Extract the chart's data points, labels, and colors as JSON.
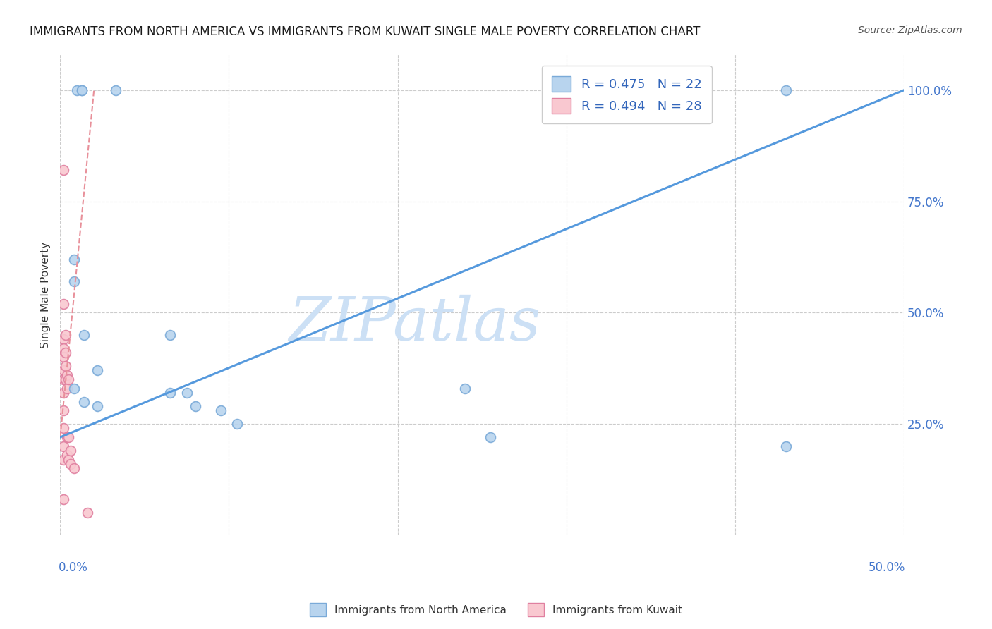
{
  "title": "IMMIGRANTS FROM NORTH AMERICA VS IMMIGRANTS FROM KUWAIT SINGLE MALE POVERTY CORRELATION CHART",
  "source": "Source: ZipAtlas.com",
  "ylabel": "Single Male Poverty",
  "right_ytick_labels": [
    "25.0%",
    "50.0%",
    "75.0%",
    "100.0%"
  ],
  "right_ytick_values": [
    0.25,
    0.5,
    0.75,
    1.0
  ],
  "watermark": "ZIPatlas",
  "watermark_color": "#cce0f5",
  "blue_scatter_x": [
    0.01,
    0.013,
    0.013,
    0.033,
    0.008,
    0.008,
    0.008,
    0.014,
    0.014,
    0.022,
    0.022,
    0.065,
    0.065,
    0.075,
    0.08,
    0.095,
    0.105,
    0.24,
    0.255,
    0.43,
    0.43
  ],
  "blue_scatter_y": [
    1.0,
    1.0,
    1.0,
    1.0,
    0.62,
    0.57,
    0.33,
    0.45,
    0.3,
    0.37,
    0.29,
    0.45,
    0.32,
    0.32,
    0.29,
    0.28,
    0.25,
    0.33,
    0.22,
    0.2,
    1.0
  ],
  "pink_scatter_x": [
    0.002,
    0.002,
    0.002,
    0.002,
    0.002,
    0.002,
    0.002,
    0.002,
    0.002,
    0.002,
    0.002,
    0.002,
    0.003,
    0.003,
    0.003,
    0.003,
    0.004,
    0.004,
    0.004,
    0.004,
    0.005,
    0.005,
    0.005,
    0.006,
    0.006,
    0.008,
    0.016,
    0.002
  ],
  "pink_scatter_y": [
    0.82,
    0.52,
    0.44,
    0.42,
    0.4,
    0.37,
    0.35,
    0.32,
    0.28,
    0.24,
    0.2,
    0.17,
    0.45,
    0.41,
    0.38,
    0.35,
    0.36,
    0.33,
    0.22,
    0.18,
    0.35,
    0.22,
    0.17,
    0.19,
    0.16,
    0.15,
    0.05,
    0.08
  ],
  "blue_line_x": [
    0.0,
    0.5
  ],
  "blue_line_y": [
    0.22,
    1.0
  ],
  "pink_line_x": [
    0.0,
    0.02
  ],
  "pink_line_y": [
    0.22,
    1.0
  ],
  "xlim": [
    0.0,
    0.5
  ],
  "ylim": [
    0.0,
    1.08
  ],
  "title_fontsize": 12,
  "source_fontsize": 10,
  "legend_fontsize": 13,
  "scatter_size": 100
}
